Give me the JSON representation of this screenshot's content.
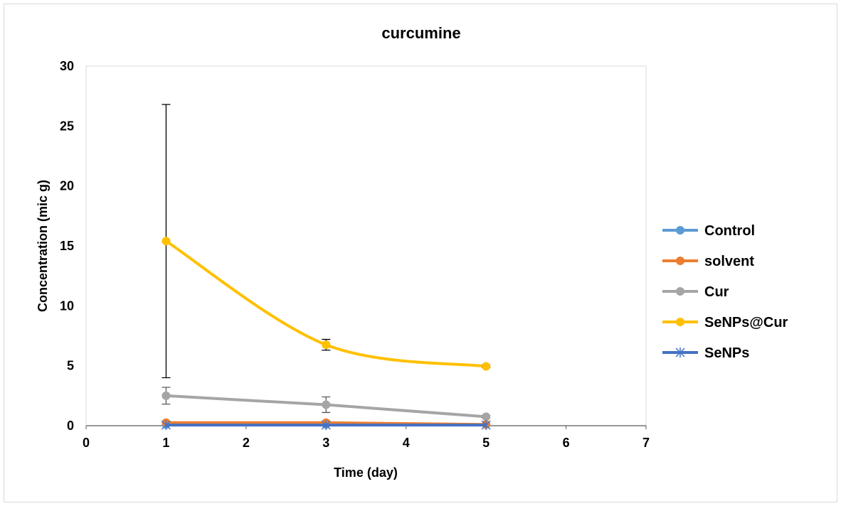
{
  "chart_data": {
    "type": "line",
    "title": "curcumine",
    "xlabel": "Time (day)",
    "ylabel": "Concentration (mic g)",
    "xlim": [
      0,
      7
    ],
    "ylim": [
      0,
      30
    ],
    "xticks": [
      0,
      1,
      2,
      3,
      4,
      5,
      6,
      7
    ],
    "yticks": [
      0,
      5,
      10,
      15,
      20,
      25,
      30
    ],
    "grid": false,
    "legend_position": "right",
    "x": [
      1,
      3,
      5
    ],
    "series": [
      {
        "name": "Control",
        "values": [
          0.1,
          0.1,
          0.1
        ],
        "errors": [
          0,
          0,
          0
        ],
        "color": "#5b9bd5",
        "marker": "circle",
        "smooth": false
      },
      {
        "name": "solvent",
        "values": [
          0.25,
          0.25,
          0.1
        ],
        "errors": [
          0,
          0,
          0
        ],
        "color": "#ed7d31",
        "marker": "circle",
        "smooth": false
      },
      {
        "name": "Cur",
        "values": [
          2.5,
          1.75,
          0.75
        ],
        "errors": [
          0.7,
          0.65,
          0.1
        ],
        "color": "#a5a5a5",
        "marker": "circle",
        "smooth": false
      },
      {
        "name": "SeNPs@Cur",
        "values": [
          15.4,
          6.75,
          4.95
        ],
        "errors": [
          11.4,
          0.45,
          0.1
        ],
        "color": "#ffc000",
        "marker": "circle",
        "smooth": true
      },
      {
        "name": "SeNPs",
        "values": [
          0.05,
          0.05,
          0.05
        ],
        "errors": [
          0,
          0,
          0
        ],
        "color": "#4472c4",
        "marker": "asterisk",
        "smooth": false
      }
    ]
  }
}
